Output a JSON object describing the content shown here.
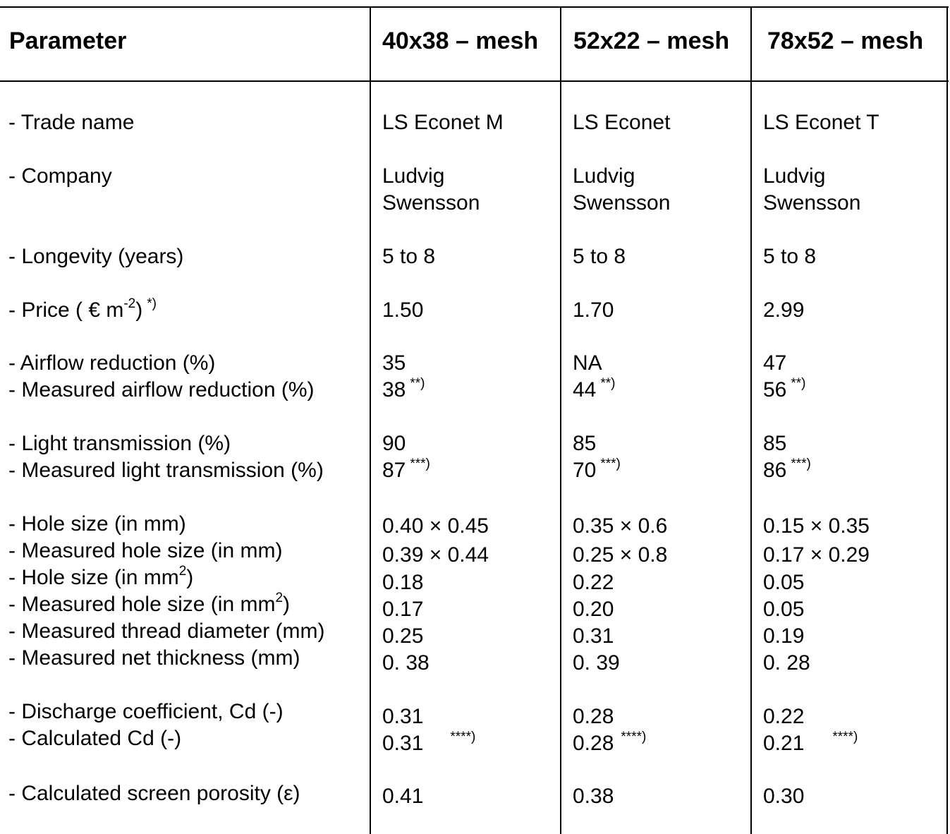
{
  "header": {
    "parameter": "Parameter",
    "col1": "40x38 – mesh",
    "col2": "52x22 – mesh",
    "col3": "78x52 – mesh"
  },
  "labels": {
    "trade_name": "- Trade name",
    "company": "- Company",
    "longevity": "- Longevity (years)",
    "price_prefix": "- Price ( € m",
    "price_exp": "-2",
    "price_suffix": ")",
    "price_note": "*)",
    "airflow_reduction": "- Airflow reduction (%)",
    "measured_airflow_reduction": "- Measured airflow reduction (%)",
    "light_transmission": "- Light transmission (%)",
    "measured_light_transmission": "- Measured light transmission (%)",
    "hole_size_mm": "- Hole size (in mm)",
    "measured_hole_size_mm": "- Measured hole size (in mm)",
    "hole_size_mm2_prefix": "- Hole size (in mm",
    "measured_hole_size_mm2_prefix": "- Measured hole size (in mm",
    "mm2_exp": "2",
    "close_paren": ")",
    "thread_diameter": "- Measured thread diameter (mm)",
    "net_thickness": "- Measured net thickness (mm)",
    "discharge_coefficient": "- Discharge coefficient, Cd (-)",
    "calculated_cd": "- Calculated Cd (-)",
    "porosity": "- Calculated screen porosity (ε)"
  },
  "notes": {
    "airflow": "**)",
    "light": "***)",
    "cd": "****)"
  },
  "columns": [
    {
      "trade_name": "LS Econet M",
      "company_line1": "Ludvig",
      "company_line2": "Swensson",
      "longevity": "5 to 8",
      "price": "1.50",
      "airflow_reduction": "35",
      "measured_airflow_reduction": "38",
      "light_transmission": "90",
      "measured_light_transmission": "87",
      "hole_size_mm": "0.40 × 0.45",
      "measured_hole_size_mm": "0.39 × 0.44",
      "hole_size_mm2": "0.18",
      "measured_hole_size_mm2": "0.17",
      "thread_diameter": "0.25",
      "net_thickness": "0. 38",
      "discharge_coefficient": "0.31",
      "calculated_cd": "0.31",
      "porosity": "0.41"
    },
    {
      "trade_name": "LS Econet",
      "company_line1": "Ludvig",
      "company_line2": "Swensson",
      "longevity": "5 to 8",
      "price": "1.70",
      "airflow_reduction": "NA",
      "measured_airflow_reduction": "44",
      "light_transmission": "85",
      "measured_light_transmission": "70",
      "hole_size_mm": "0.35 × 0.6",
      "measured_hole_size_mm": "0.25 × 0.8",
      "hole_size_mm2": "0.22",
      "measured_hole_size_mm2": "0.20",
      "thread_diameter": "0.31",
      "net_thickness": "0. 39",
      "discharge_coefficient": "0.28",
      "calculated_cd": "0.28",
      "porosity": "0.38"
    },
    {
      "trade_name": "LS Econet T",
      "company_line1": "Ludvig",
      "company_line2": "Swensson",
      "longevity": "5 to 8",
      "price": "2.99",
      "airflow_reduction": "47",
      "measured_airflow_reduction": "56",
      "light_transmission": "85",
      "measured_light_transmission": "86",
      "hole_size_mm": "0.15 × 0.35",
      "measured_hole_size_mm": "0.17 × 0.29",
      "hole_size_mm2": "0.05",
      "measured_hole_size_mm2": "0.05",
      "thread_diameter": "0.19",
      "net_thickness": "0. 28",
      "discharge_coefficient": "0.22",
      "calculated_cd": "0.21",
      "porosity": "0.30"
    }
  ]
}
